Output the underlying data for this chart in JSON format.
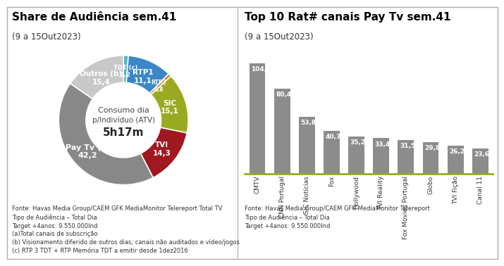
{
  "pie_title": "Share de Audiência sem.41",
  "pie_subtitle": "(9 a 15Out2023)",
  "pie_center_text1": "Consumo dia",
  "pie_center_text2": "p/Indivíduo (ATV)",
  "pie_center_text3": "5h17m",
  "pie_values": [
    1.2,
    11.1,
    0.8,
    15.1,
    14.3,
    42.2,
    15.4
  ],
  "pie_colors": [
    "#4db3c8",
    "#3a87c8",
    "#e07820",
    "#9aaa20",
    "#a01820",
    "#888888",
    "#c8c8c8"
  ],
  "pie_label_texts": [
    "TDT (c)\n1,2",
    "RTP1\n11,1",
    "RTP2\n0,8",
    "SIC\n15,1",
    "TVI\n14,3",
    "Pay Tv (a)\n42,2",
    "Outros (b)\n15,4"
  ],
  "pie_footnote": "Fonte: Havas Media Group/CAEM GFK MediaMonitor Telereport Total TV\nTipo de Audiência – Total Dia\nTarget +4anos: 9.550.000Ind\n(a)Total canais de subscrição\n(b) Visionamento diferido de outros dias; canais não auditados e vídeo/jogos\n(c) RTP 3 TDT + RTP Memória TDT a emitir desde 1dez2016",
  "bar_title": "Top 10 Rat# canais Pay Tv sem.41",
  "bar_subtitle": "(9 a 15Out2023)",
  "bar_categories": [
    "CMTV",
    "CNN Portugal",
    "SIC Notícias",
    "Fox",
    "Hollywood",
    "TVI Reality",
    "Fox Movies Portugal",
    "Globo",
    "TVI Fição",
    "Canal 11"
  ],
  "bar_values": [
    104.3,
    80.4,
    53.8,
    40.3,
    35.2,
    33.4,
    31.5,
    29.8,
    26.2,
    23.6
  ],
  "bar_color": "#8c8c8c",
  "bar_footnote": "Fonte: Havas Media Group/CAEM GFK MediaMonitor Telereport\nTipo de Audiência – Total Dia\nTarget +4anos: 9.550.000Ind",
  "bar_line_color": "#9aaa20",
  "footnote_fontsize": 6.0,
  "title_fontsize": 11,
  "subtitle_fontsize": 8.5
}
